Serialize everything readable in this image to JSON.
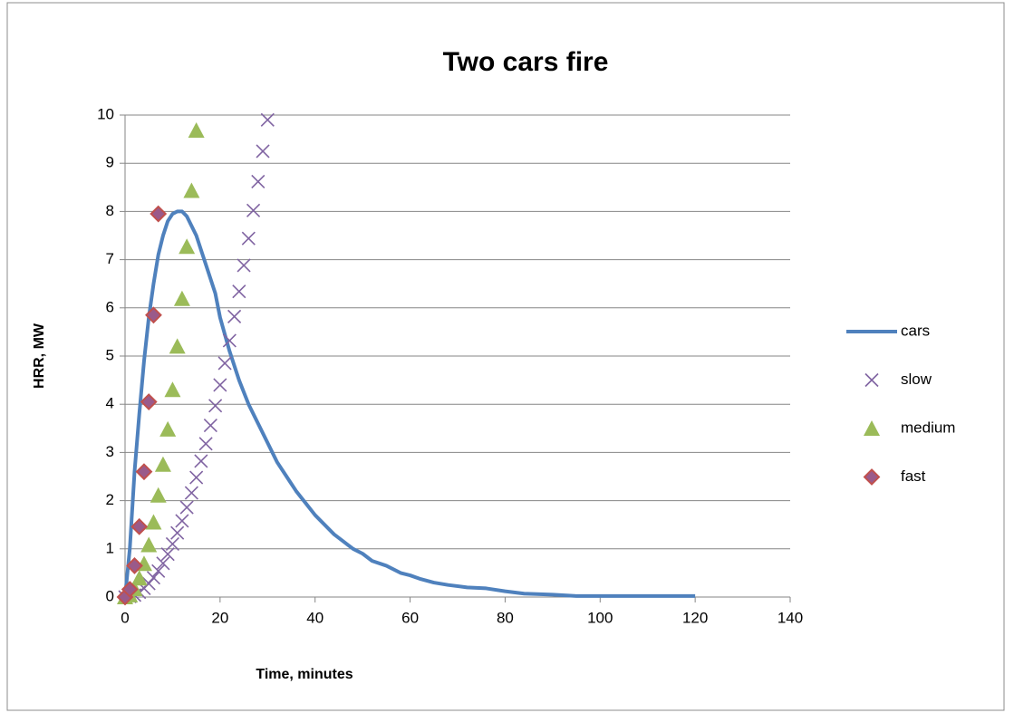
{
  "chart_data": {
    "type": "scatter",
    "title": "Two cars fire",
    "x_label": "Time, minutes",
    "y_label": "HRR, MW",
    "xlim": [
      0,
      140
    ],
    "ylim": [
      0,
      10
    ],
    "xticks": [
      0,
      20,
      40,
      60,
      80,
      100,
      120,
      140
    ],
    "yticks": [
      0,
      1,
      2,
      3,
      4,
      5,
      6,
      7,
      8,
      9,
      10
    ],
    "grid": true,
    "legend": "right",
    "series": [
      {
        "name": "cars",
        "marker": "line",
        "color": "#4f81bd",
        "x": [
          0,
          1,
          2,
          3,
          4,
          5,
          6,
          7,
          8,
          9,
          10,
          11,
          12,
          13,
          14,
          15,
          16,
          17,
          18,
          19,
          20,
          22,
          24,
          26,
          28,
          30,
          32,
          34,
          36,
          38,
          40,
          42,
          44,
          46,
          48,
          50,
          52,
          55,
          58,
          60,
          62,
          65,
          68,
          72,
          76,
          80,
          84,
          90,
          95,
          100,
          110,
          120
        ],
        "values": [
          0,
          1,
          2.6,
          3.8,
          4.9,
          5.8,
          6.5,
          7.1,
          7.5,
          7.8,
          7.95,
          8,
          8,
          7.9,
          7.7,
          7.5,
          7.2,
          6.9,
          6.6,
          6.3,
          5.8,
          5.1,
          4.5,
          4,
          3.6,
          3.2,
          2.8,
          2.5,
          2.2,
          1.95,
          1.7,
          1.5,
          1.3,
          1.15,
          1,
          0.9,
          0.75,
          0.65,
          0.5,
          0.45,
          0.38,
          0.3,
          0.25,
          0.2,
          0.18,
          0.12,
          0.07,
          0.05,
          0.02,
          0.02,
          0.02,
          0.02
        ]
      },
      {
        "name": "slow",
        "marker": "x",
        "color": "#8064a2",
        "x": [
          0,
          1,
          2,
          3,
          4,
          5,
          6,
          7,
          8,
          9,
          10,
          11,
          12,
          13,
          14,
          15,
          16,
          17,
          18,
          19,
          20,
          21,
          22,
          23,
          24,
          25,
          26,
          27,
          28,
          29,
          30
        ],
        "values": [
          0,
          0.01,
          0.04,
          0.1,
          0.18,
          0.28,
          0.4,
          0.54,
          0.7,
          0.89,
          1.1,
          1.33,
          1.58,
          1.86,
          2.16,
          2.48,
          2.82,
          3.18,
          3.56,
          3.97,
          4.4,
          4.85,
          5.32,
          5.82,
          6.34,
          6.88,
          7.44,
          8.02,
          8.62,
          9.25,
          9.9
        ]
      },
      {
        "name": "medium",
        "marker": "triangle",
        "color": "#9bbb59",
        "x": [
          0,
          1,
          2,
          3,
          4,
          5,
          6,
          7,
          8,
          9,
          10,
          11,
          12,
          13,
          14,
          15
        ],
        "values": [
          0,
          0.04,
          0.17,
          0.39,
          0.69,
          1.08,
          1.55,
          2.11,
          2.75,
          3.48,
          4.3,
          5.2,
          6.19,
          7.27,
          8.43,
          9.68
        ]
      },
      {
        "name": "fast",
        "marker": "diamond",
        "color": "#c0504d",
        "x": [
          0,
          1,
          2,
          3,
          4,
          5,
          6,
          7
        ],
        "values": [
          0,
          0.16,
          0.65,
          1.46,
          2.6,
          4.05,
          5.85,
          7.95
        ]
      }
    ]
  }
}
